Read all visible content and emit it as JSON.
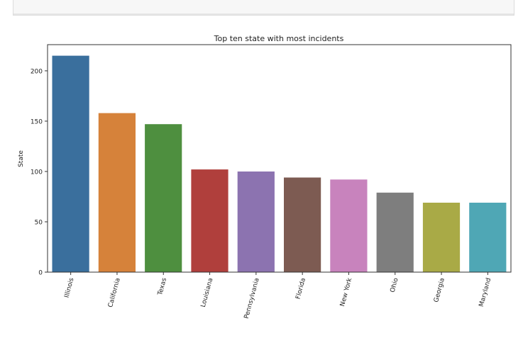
{
  "chart_data": {
    "type": "bar",
    "title": "Top ten state with most incidents",
    "xlabel": "",
    "ylabel": "State",
    "categories": [
      "Illinois",
      "California",
      "Texas",
      "Louisiana",
      "Pennsylvania",
      "Florida",
      "New York",
      "Ohio",
      "Georgia",
      "Maryland"
    ],
    "values": [
      215,
      158,
      147,
      102,
      100,
      94,
      92,
      79,
      69,
      69
    ],
    "colors": [
      "#3a6f9d",
      "#d6823a",
      "#4e8f3f",
      "#b03f3c",
      "#8c73b0",
      "#7d5b52",
      "#c883bd",
      "#7e7e7e",
      "#a9aa46",
      "#4fa7b5"
    ],
    "ylim": [
      0,
      226
    ],
    "yticks": [
      0,
      50,
      100,
      150,
      200
    ],
    "grid": false
  }
}
